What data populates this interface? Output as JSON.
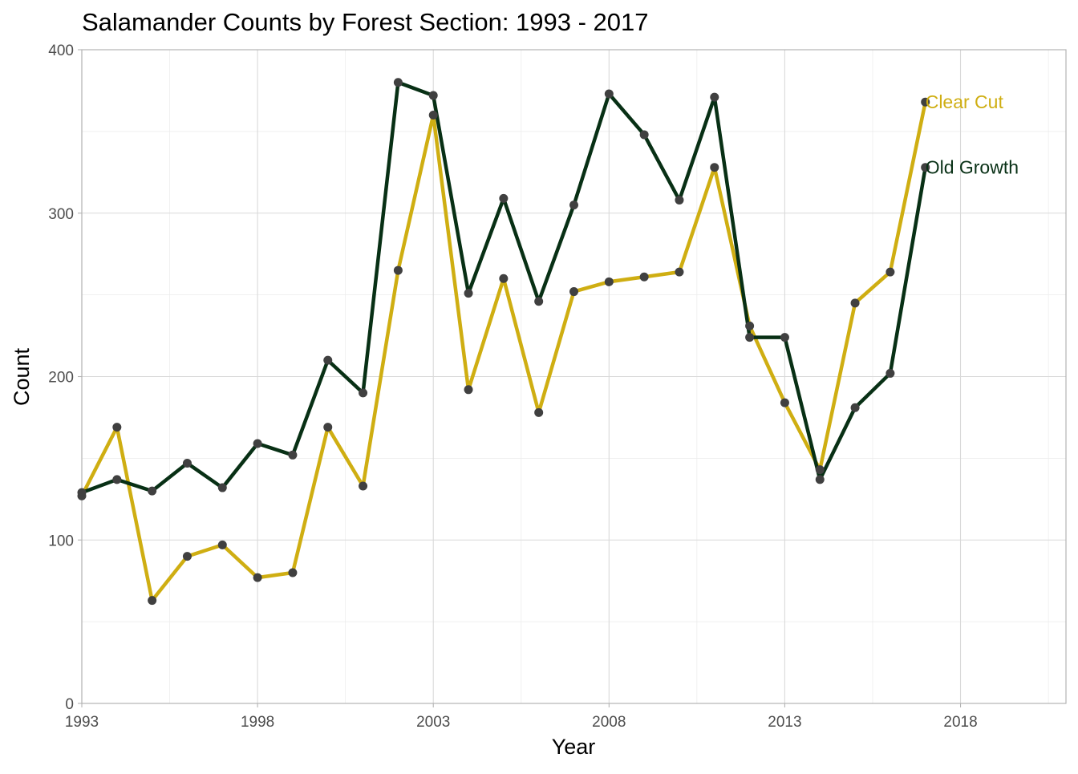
{
  "chart_data": {
    "type": "line",
    "title": "Salamander Counts by Forest Section: 1993 - 2017",
    "xlabel": "Year",
    "ylabel": "Count",
    "xlim": [
      1993,
      2021
    ],
    "ylim": [
      0,
      400
    ],
    "x_ticks": [
      1993,
      1998,
      2003,
      2008,
      2013,
      2018
    ],
    "y_ticks": [
      0,
      100,
      200,
      300,
      400
    ],
    "grid": true,
    "legend": "direct labels at line ends (right)",
    "point_color": "#404040",
    "x": [
      1993,
      1994,
      1995,
      1996,
      1997,
      1998,
      1999,
      2000,
      2001,
      2002,
      2003,
      2004,
      2005,
      2006,
      2007,
      2008,
      2009,
      2010,
      2011,
      2012,
      2013,
      2014,
      2015,
      2016,
      2017
    ],
    "series": [
      {
        "name": "Clear Cut",
        "color": "#CFAE12",
        "values": [
          127,
          169,
          63,
          90,
          97,
          77,
          80,
          169,
          133,
          265,
          360,
          192,
          260,
          178,
          252,
          258,
          261,
          264,
          328,
          231,
          184,
          143,
          245,
          264,
          368
        ]
      },
      {
        "name": "Old Growth",
        "color": "#083015",
        "values": [
          129,
          137,
          130,
          147,
          132,
          159,
          152,
          210,
          190,
          380,
          372,
          251,
          309,
          246,
          305,
          373,
          348,
          308,
          371,
          224,
          224,
          137,
          181,
          202,
          328
        ]
      }
    ]
  }
}
